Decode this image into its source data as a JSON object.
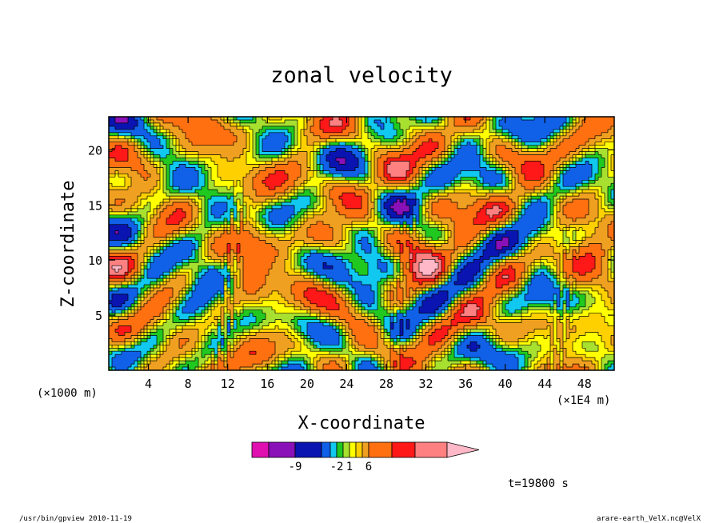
{
  "chart_data": {
    "type": "heatmap",
    "title": "zonal velocity",
    "xlabel": "X-coordinate",
    "ylabel": "Z-coordinate",
    "x_unit_note": "(×1000 m)",
    "x_scale_note": "(×1E4 m)",
    "xlim": [
      0,
      51
    ],
    "ylim": [
      0,
      23
    ],
    "x_ticks": [
      4,
      8,
      12,
      16,
      20,
      24,
      28,
      32,
      36,
      40,
      44,
      48
    ],
    "y_ticks": [
      5,
      10,
      15,
      20
    ],
    "colorbar": {
      "colors": [
        "#e010b0",
        "#8a10b8",
        "#0a14b0",
        "#1060e8",
        "#10c8f0",
        "#20c820",
        "#a8e030",
        "#ffff00",
        "#ffd000",
        "#f0a020",
        "#ff7010",
        "#ff1818",
        "#ff8080",
        "#ffb8c8"
      ],
      "tick_labels": [
        "-9",
        "-2",
        "1",
        "6"
      ],
      "tick_after_index": [
        1,
        4,
        6,
        9
      ]
    },
    "features": [
      {
        "x": 12,
        "zmin": 1,
        "zmax": 14,
        "strength": 1.0
      },
      {
        "x": 29.4,
        "zmin": 1,
        "zmax": 14,
        "strength": 0.8
      },
      {
        "x": 45.8,
        "zmin": 1,
        "zmax": 10,
        "strength": 0.8
      }
    ]
  },
  "annotations": {
    "time_label": "t=19800 s",
    "footer_left": "/usr/bin/gpview 2010-11-19",
    "footer_right": "arare-earth_VelX.nc@VelX"
  }
}
